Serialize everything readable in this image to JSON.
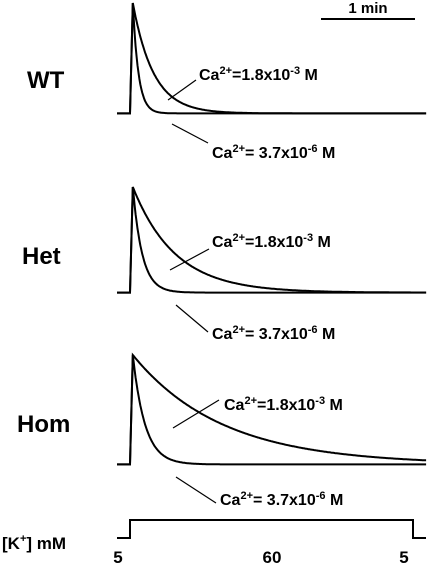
{
  "chart_data": {
    "type": "line",
    "scale_bar": {
      "label": "1 min",
      "minutes": 1
    },
    "panels": [
      {
        "name": "WT",
        "series": [
          {
            "name": "Ca2+=1.8x10-3 M",
            "label_base": "=1.8x10",
            "label_exp": "-3",
            "label_unit": " M",
            "baseline": 0.04,
            "peak": 1.0,
            "tau_min": 0.22
          },
          {
            "name": "Ca2+= 3.7x10-6 M",
            "label_base": "= 3.7x10",
            "label_exp": "-6",
            "label_unit": " M",
            "baseline": 0.04,
            "peak": 1.0,
            "tau_min": 0.06
          }
        ]
      },
      {
        "name": "Het",
        "series": [
          {
            "name": "Ca2+=1.8x10-3 M",
            "label_base": "=1.8x10",
            "label_exp": "-3",
            "label_unit": " M",
            "baseline": 0.04,
            "peak": 1.0,
            "tau_min": 0.45
          },
          {
            "name": "Ca2+= 3.7x10-6 M",
            "label_base": "= 3.7x10",
            "label_exp": "-6",
            "label_unit": " M",
            "baseline": 0.04,
            "peak": 1.0,
            "tau_min": 0.1
          }
        ]
      },
      {
        "name": "Hom",
        "series": [
          {
            "name": "Ca2+=1.8x10-3 M",
            "label_base": "=1.8x10",
            "label_exp": "-3",
            "label_unit": " M",
            "baseline": 0.04,
            "peak": 1.0,
            "tau_min": 0.95
          },
          {
            "name": "Ca2+= 3.7x10-6 M",
            "label_base": "= 3.7x10",
            "label_exp": "-6",
            "label_unit": " M",
            "baseline": 0.04,
            "peak": 1.0,
            "tau_min": 0.13
          }
        ]
      }
    ],
    "ca_symbol": "Ca",
    "ca_charge": "2+",
    "stimulus": {
      "label": "[K+] mM",
      "label_bracket_open": "[K",
      "label_charge": "+",
      "label_rest": "] mM",
      "levels": [
        "5",
        "60",
        "5"
      ],
      "duration_min": 3.05
    }
  }
}
